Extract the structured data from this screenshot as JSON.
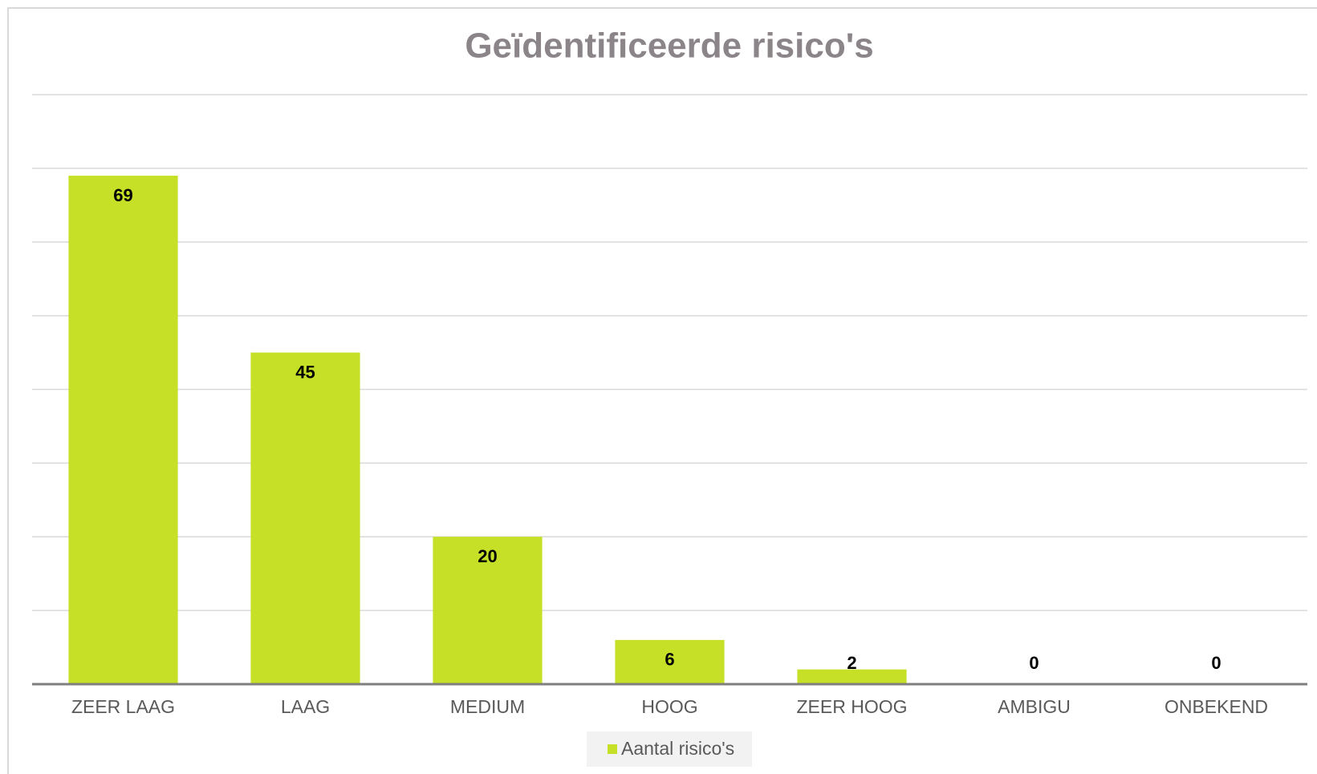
{
  "chart_data": {
    "type": "bar",
    "title": "Geïdentificeerde risico's",
    "categories": [
      "ZEER LAAG",
      "LAAG",
      "MEDIUM",
      "HOOG",
      "ZEER HOOG",
      "AMBIGU",
      "ONBEKEND"
    ],
    "series": [
      {
        "name": "Aantal risico's",
        "color": "#c5e027",
        "values": [
          69,
          45,
          20,
          6,
          2,
          0,
          0
        ]
      }
    ],
    "ylim": [
      0,
      80
    ],
    "yticks": [
      0,
      10,
      20,
      30,
      40,
      50,
      60,
      70,
      80
    ],
    "grid": true,
    "legend": "bottom"
  }
}
